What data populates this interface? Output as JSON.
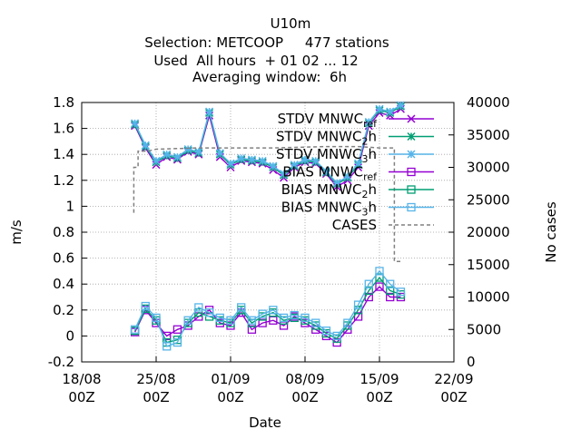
{
  "chart_data": {
    "type": "line",
    "title_lines": [
      "U10m",
      "Selection: METCOOP     477 stations",
      "Used  All hours  + 01 02 ... 12",
      "Averaging window:  6h"
    ],
    "xlabel": "Date",
    "ylabel": "m/s",
    "y2label": "No cases",
    "x_ticks": [
      {
        "t": 0,
        "l1": "18/08",
        "l2": "00Z"
      },
      {
        "t": 7,
        "l1": "25/08",
        "l2": "00Z"
      },
      {
        "t": 14,
        "l1": "01/09",
        "l2": "00Z"
      },
      {
        "t": 21,
        "l1": "08/09",
        "l2": "00Z"
      },
      {
        "t": 28,
        "l1": "15/09",
        "l2": "00Z"
      },
      {
        "t": 35,
        "l1": "22/09",
        "l2": "00Z"
      }
    ],
    "xlim": [
      0,
      35
    ],
    "ylim": [
      -0.2,
      1.8
    ],
    "y_ticks": [
      "-0.2",
      "0",
      "0.2",
      "0.4",
      "0.6",
      "0.8",
      "1",
      "1.2",
      "1.4",
      "1.6",
      "1.8"
    ],
    "y2lim": [
      0,
      40000
    ],
    "y2_ticks": [
      "0",
      "5000",
      "10000",
      "15000",
      "20000",
      "25000",
      "30000",
      "35000",
      "40000"
    ],
    "grid": true,
    "legend_position": "top-right",
    "series": [
      {
        "key": "stdv_ref",
        "name": "STDV MNWC_ref",
        "label_main": "STDV MNWC",
        "label_sub": "ref",
        "axis": "y",
        "color": "#9400d3",
        "marker": "x-cross",
        "x": [
          5.0,
          6.0,
          7.0,
          8.0,
          9.0,
          10.0,
          11.0,
          12.0,
          13.0,
          14.0,
          15.0,
          16.0,
          17.0,
          18.0,
          19.0,
          20.0,
          21.0,
          22.0,
          23.0,
          24.0,
          25.0,
          26.0,
          27.0,
          28.0,
          29.0,
          30.0
        ],
        "y": [
          1.62,
          1.45,
          1.32,
          1.38,
          1.36,
          1.42,
          1.4,
          1.7,
          1.38,
          1.3,
          1.35,
          1.34,
          1.33,
          1.28,
          1.22,
          1.3,
          1.34,
          1.33,
          1.25,
          1.15,
          1.2,
          1.3,
          1.62,
          1.72,
          1.7,
          1.75
        ]
      },
      {
        "key": "stdv_2h",
        "name": "STDV MNWC_2h",
        "label_main": "STDV MNWC",
        "label_sub": "2",
        "label_tail": "h",
        "axis": "y",
        "color": "#009e73",
        "marker": "star",
        "x": [
          5.0,
          6.0,
          7.0,
          8.0,
          9.0,
          10.0,
          11.0,
          12.0,
          13.0,
          14.0,
          15.0,
          16.0,
          17.0,
          18.0,
          19.0,
          20.0,
          21.0,
          22.0,
          23.0,
          24.0,
          25.0,
          26.0,
          27.0,
          28.0,
          29.0,
          30.0
        ],
        "y": [
          1.63,
          1.46,
          1.34,
          1.39,
          1.37,
          1.43,
          1.41,
          1.72,
          1.4,
          1.32,
          1.36,
          1.35,
          1.34,
          1.3,
          1.24,
          1.31,
          1.35,
          1.34,
          1.26,
          1.17,
          1.22,
          1.32,
          1.64,
          1.74,
          1.72,
          1.77
        ]
      },
      {
        "key": "stdv_3h",
        "name": "STDV MNWC_3h",
        "label_main": "STDV MNWC",
        "label_sub": "3",
        "label_tail": "h",
        "axis": "y",
        "color": "#56b4e9",
        "marker": "asterisk",
        "x": [
          5.0,
          6.0,
          7.0,
          8.0,
          9.0,
          10.0,
          11.0,
          12.0,
          13.0,
          14.0,
          15.0,
          16.0,
          17.0,
          18.0,
          19.0,
          20.0,
          21.0,
          22.0,
          23.0,
          24.0,
          25.0,
          26.0,
          27.0,
          28.0,
          29.0,
          30.0
        ],
        "y": [
          1.64,
          1.47,
          1.35,
          1.4,
          1.38,
          1.44,
          1.42,
          1.73,
          1.41,
          1.33,
          1.37,
          1.36,
          1.35,
          1.31,
          1.25,
          1.32,
          1.36,
          1.35,
          1.27,
          1.18,
          1.23,
          1.33,
          1.65,
          1.75,
          1.73,
          1.78
        ]
      },
      {
        "key": "bias_ref",
        "name": "BIAS MNWC_ref",
        "label_main": "BIAS MNWC",
        "label_sub": "ref",
        "axis": "y",
        "color": "#9400d3",
        "marker": "square",
        "x": [
          5.0,
          6.0,
          7.0,
          8.0,
          9.0,
          10.0,
          11.0,
          12.0,
          13.0,
          14.0,
          15.0,
          16.0,
          17.0,
          18.0,
          19.0,
          20.0,
          21.0,
          22.0,
          23.0,
          24.0,
          25.0,
          26.0,
          27.0,
          28.0,
          29.0,
          30.0
        ],
        "y": [
          0.03,
          0.2,
          0.1,
          0.0,
          0.05,
          0.08,
          0.15,
          0.2,
          0.1,
          0.08,
          0.18,
          0.05,
          0.1,
          0.12,
          0.08,
          0.15,
          0.1,
          0.05,
          0.0,
          -0.05,
          0.05,
          0.15,
          0.3,
          0.38,
          0.3,
          0.3
        ]
      },
      {
        "key": "bias_2h",
        "name": "BIAS MNWC_2h",
        "label_main": "BIAS MNWC",
        "label_sub": "2",
        "label_tail": "h",
        "axis": "y",
        "color": "#009e73",
        "marker": "square",
        "x": [
          5.0,
          6.0,
          7.0,
          8.0,
          9.0,
          10.0,
          11.0,
          12.0,
          13.0,
          14.0,
          15.0,
          16.0,
          17.0,
          18.0,
          19.0,
          20.0,
          21.0,
          22.0,
          23.0,
          24.0,
          25.0,
          26.0,
          27.0,
          28.0,
          29.0,
          30.0
        ],
        "y": [
          0.04,
          0.21,
          0.12,
          -0.05,
          -0.03,
          0.1,
          0.18,
          0.15,
          0.12,
          0.1,
          0.2,
          0.1,
          0.15,
          0.18,
          0.12,
          0.14,
          0.12,
          0.08,
          0.02,
          -0.02,
          0.08,
          0.2,
          0.35,
          0.45,
          0.35,
          0.32
        ]
      },
      {
        "key": "bias_3h",
        "name": "BIAS MNWC_3h",
        "label_main": "BIAS MNWC",
        "label_sub": "3",
        "label_tail": "h",
        "axis": "y",
        "color": "#56b4e9",
        "marker": "square",
        "x": [
          5.0,
          6.0,
          7.0,
          8.0,
          9.0,
          10.0,
          11.0,
          12.0,
          13.0,
          14.0,
          15.0,
          16.0,
          17.0,
          18.0,
          19.0,
          20.0,
          21.0,
          22.0,
          23.0,
          24.0,
          25.0,
          26.0,
          27.0,
          28.0,
          29.0,
          30.0
        ],
        "y": [
          0.05,
          0.23,
          0.14,
          -0.08,
          -0.05,
          0.12,
          0.22,
          0.18,
          0.14,
          0.12,
          0.22,
          0.12,
          0.17,
          0.2,
          0.14,
          0.16,
          0.14,
          0.1,
          0.04,
          0.0,
          0.1,
          0.24,
          0.4,
          0.5,
          0.4,
          0.34
        ]
      },
      {
        "key": "cases",
        "name": "CASES",
        "label_main": "CASES",
        "axis": "y2",
        "color": "#808080",
        "marker": "none",
        "dashed": true,
        "x": [
          4.9,
          4.9,
          5.3,
          5.3,
          6.2,
          7.0,
          11.0,
          18.0,
          23.0,
          26.0,
          27.0,
          28.0,
          29.0,
          29.4,
          29.4,
          30.0
        ],
        "y": [
          23000,
          30000,
          30000,
          32500,
          32500,
          32800,
          33000,
          33000,
          33200,
          33200,
          33100,
          33000,
          33000,
          33000,
          15500,
          15500
        ]
      }
    ]
  }
}
